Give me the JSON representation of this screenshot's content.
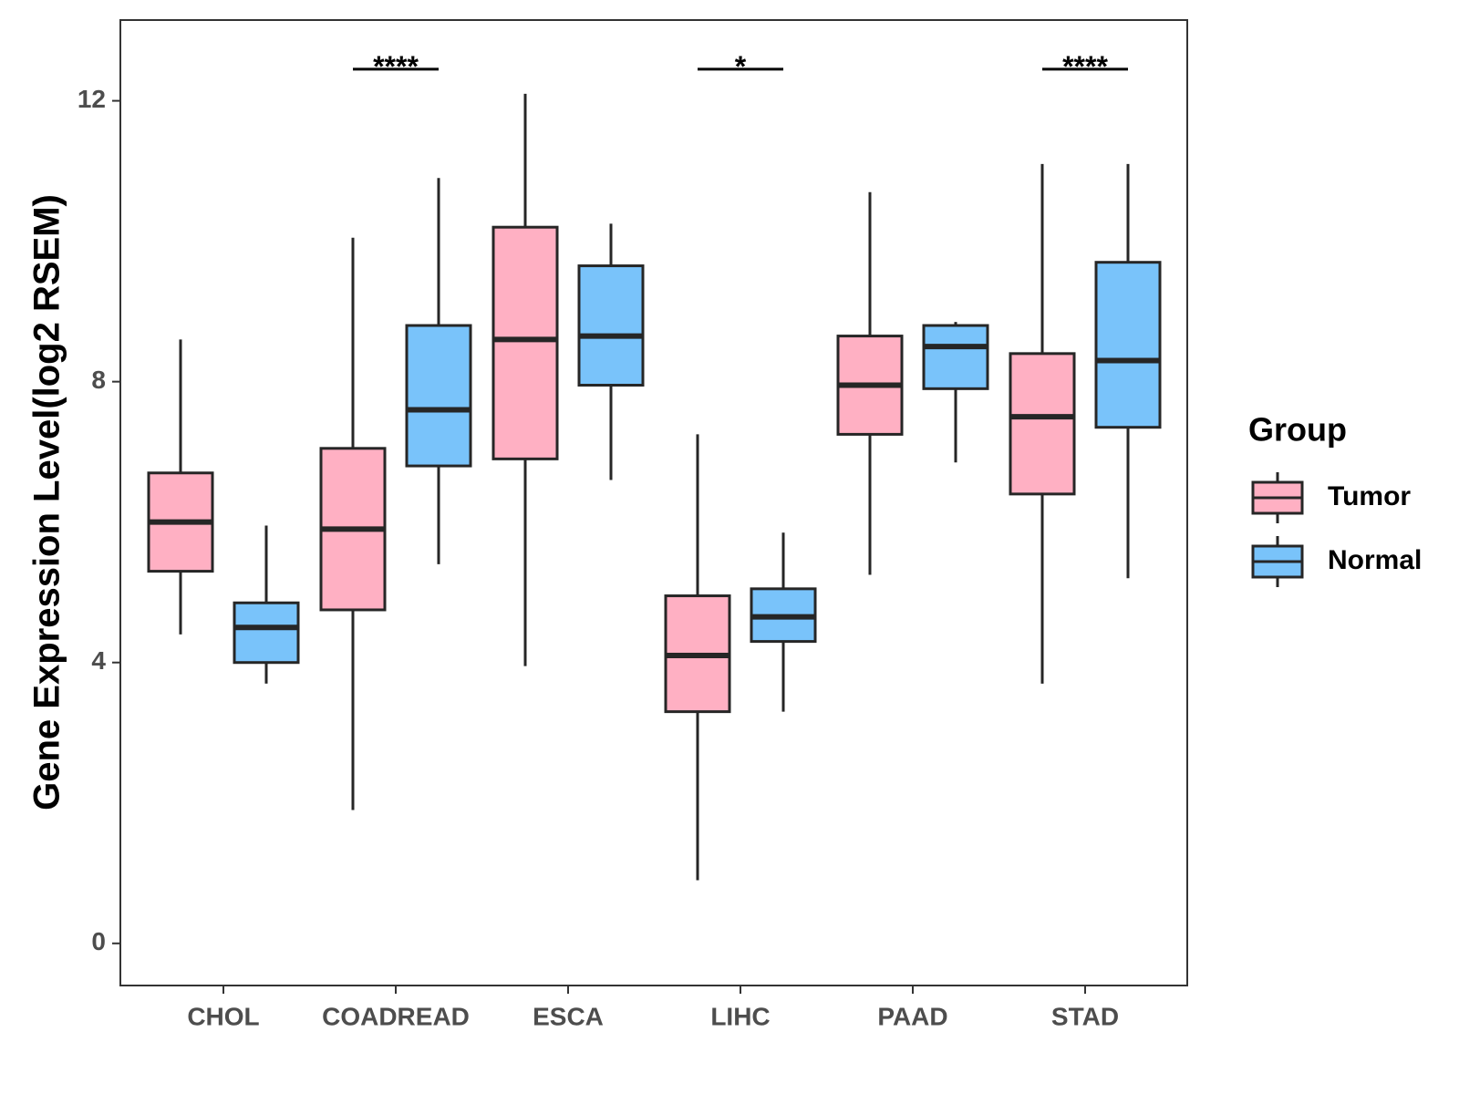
{
  "chart_data": {
    "type": "boxplot",
    "title": "",
    "xlabel": "",
    "ylabel": "Gene Expression Level(log2 RSEM)",
    "ylim": [
      -0.6,
      13.15
    ],
    "yticks": [
      0,
      4,
      8,
      12
    ],
    "categories": [
      "CHOL",
      "COADREAD",
      "ESCA",
      "LIHC",
      "PAAD",
      "STAD"
    ],
    "legend": {
      "title": "Group",
      "position": "right",
      "entries": [
        {
          "name": "Tumor",
          "color": "#FFB0C3"
        },
        {
          "name": "Normal",
          "color": "#79C3FA"
        }
      ]
    },
    "series": [
      {
        "name": "Tumor",
        "color": "#FFB0C3",
        "boxes": [
          {
            "category": "CHOL",
            "whisker_low": 4.4,
            "q1": 5.3,
            "median": 6.0,
            "q3": 6.7,
            "whisker_high": 8.6
          },
          {
            "category": "COADREAD",
            "whisker_low": 1.9,
            "q1": 4.75,
            "median": 5.9,
            "q3": 7.05,
            "whisker_high": 10.05
          },
          {
            "category": "ESCA",
            "whisker_low": 3.95,
            "q1": 6.9,
            "median": 8.6,
            "q3": 10.2,
            "whisker_high": 12.1
          },
          {
            "category": "LIHC",
            "whisker_low": 0.9,
            "q1": 3.3,
            "median": 4.1,
            "q3": 4.95,
            "whisker_high": 7.25
          },
          {
            "category": "PAAD",
            "whisker_low": 5.25,
            "q1": 7.25,
            "median": 7.95,
            "q3": 8.65,
            "whisker_high": 10.7
          },
          {
            "category": "STAD",
            "whisker_low": 3.7,
            "q1": 6.4,
            "median": 7.5,
            "q3": 8.4,
            "whisker_high": 11.1
          }
        ]
      },
      {
        "name": "Normal",
        "color": "#79C3FA",
        "boxes": [
          {
            "category": "CHOL",
            "whisker_low": 3.7,
            "q1": 4.0,
            "median": 4.5,
            "q3": 4.85,
            "whisker_high": 5.95
          },
          {
            "category": "COADREAD",
            "whisker_low": 5.4,
            "q1": 6.8,
            "median": 7.6,
            "q3": 8.8,
            "whisker_high": 10.9
          },
          {
            "category": "ESCA",
            "whisker_low": 6.6,
            "q1": 7.95,
            "median": 8.65,
            "q3": 9.65,
            "whisker_high": 10.25
          },
          {
            "category": "LIHC",
            "whisker_low": 3.3,
            "q1": 4.3,
            "median": 4.65,
            "q3": 5.05,
            "whisker_high": 5.85
          },
          {
            "category": "PAAD",
            "whisker_low": 6.85,
            "q1": 7.9,
            "median": 8.5,
            "q3": 8.8,
            "whisker_high": 8.85
          },
          {
            "category": "STAD",
            "whisker_low": 5.2,
            "q1": 7.35,
            "median": 8.3,
            "q3": 9.7,
            "whisker_high": 11.1
          }
        ]
      }
    ],
    "significance": [
      {
        "category": "COADREAD",
        "label": "****",
        "y": 12.45
      },
      {
        "category": "LIHC",
        "label": "*",
        "y": 12.45
      },
      {
        "category": "STAD",
        "label": "****",
        "y": 12.45
      }
    ]
  }
}
